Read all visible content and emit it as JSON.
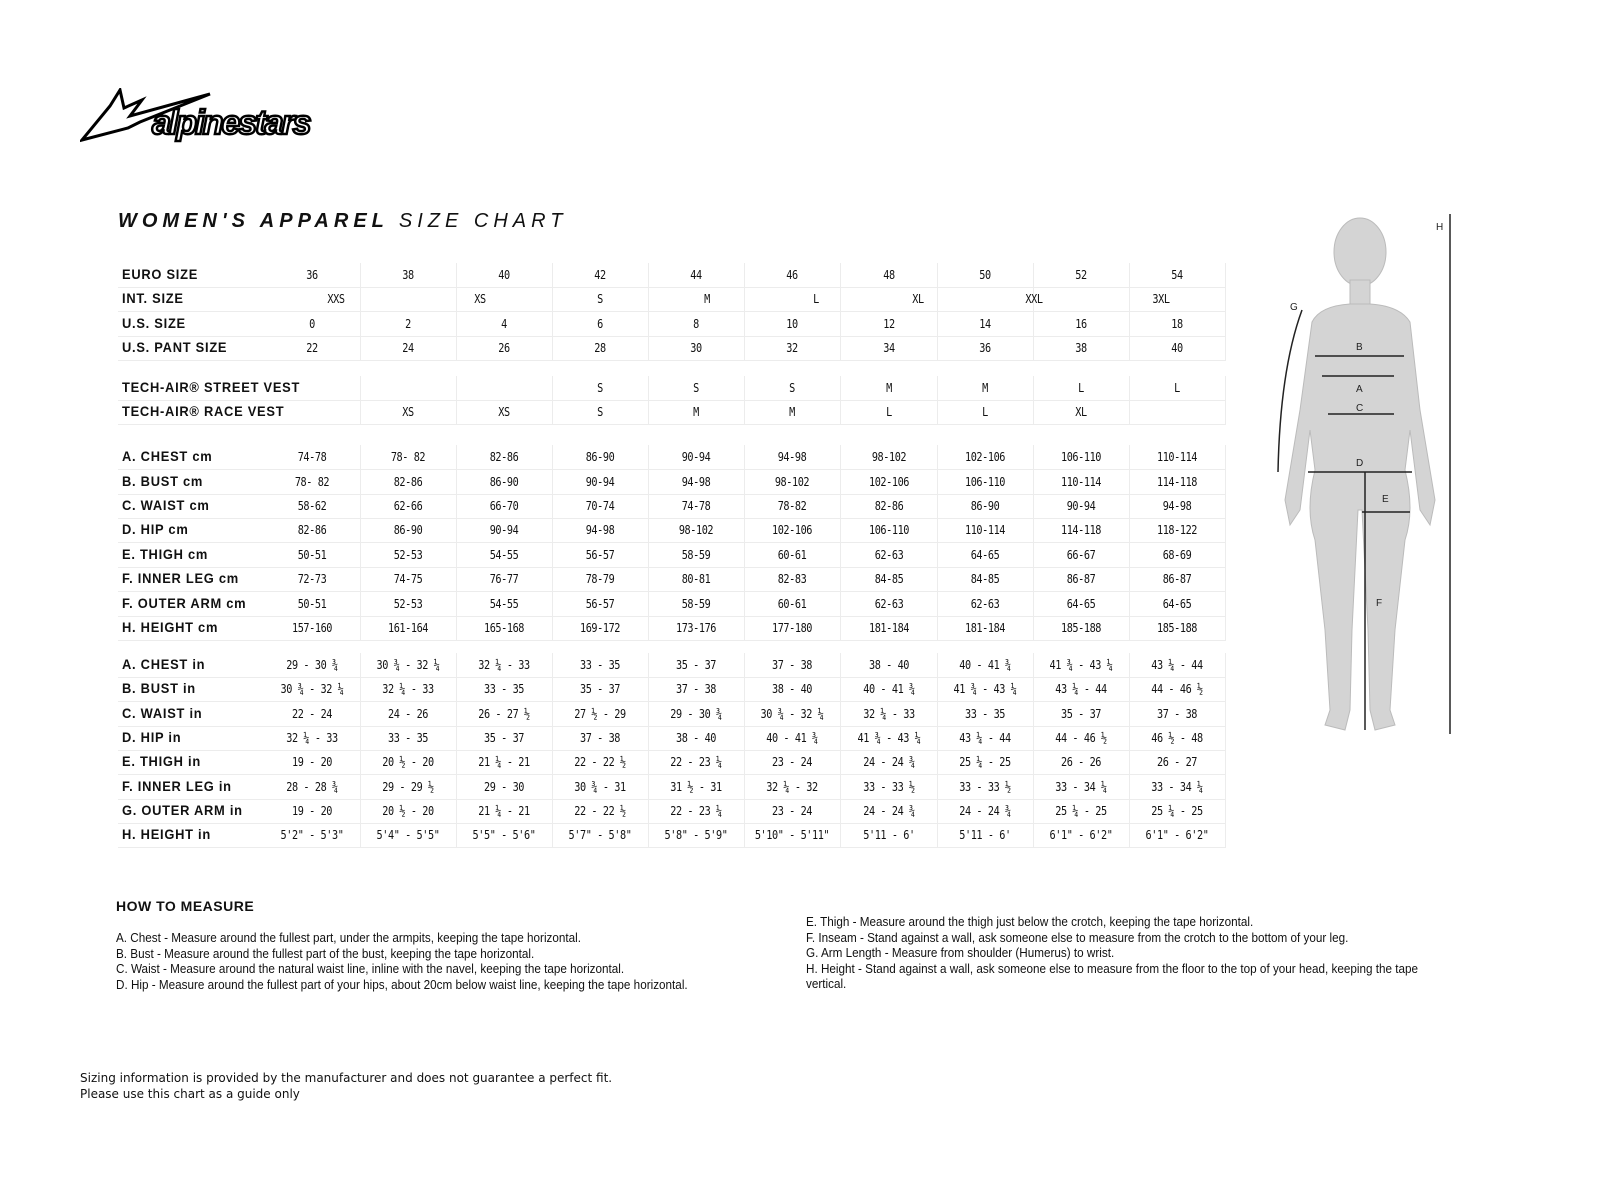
{
  "brand": {
    "logo_text": "alpinestars"
  },
  "title": {
    "bold": "WOMEN'S APPAREL",
    "light": "SIZE CHART"
  },
  "size_rows": [
    {
      "label": "EURO SIZE",
      "values": [
        "36",
        "38",
        "40",
        "42",
        "44",
        "46",
        "48",
        "50",
        "52",
        "54"
      ]
    },
    {
      "label": "INT. SIZE",
      "values": [
        "XXS",
        "XS",
        "S",
        "M",
        "L",
        "XL",
        "XXL",
        "3XL"
      ]
    },
    {
      "label": "U.S. SIZE",
      "values": [
        "0",
        "2",
        "4",
        "6",
        "8",
        "10",
        "12",
        "14",
        "16",
        "18"
      ]
    },
    {
      "label": "U.S. PANT SIZE",
      "values": [
        "22",
        "24",
        "26",
        "28",
        "30",
        "32",
        "34",
        "36",
        "38",
        "40"
      ]
    }
  ],
  "vest_rows": [
    {
      "label": "TECH-AIR® STREET VEST",
      "values": [
        "",
        "",
        "",
        "S",
        "S",
        "S",
        "M",
        "M",
        "L",
        "L"
      ]
    },
    {
      "label": "TECH-AIR® RACE VEST",
      "values": [
        "",
        "XS",
        "XS",
        "S",
        "M",
        "M",
        "L",
        "L",
        "XL",
        ""
      ]
    }
  ],
  "cm_rows": [
    {
      "label": "A. CHEST cm",
      "values": [
        "74-78",
        "78- 82",
        "82-86",
        "86-90",
        "90-94",
        "94-98",
        "98-102",
        "102-106",
        "106-110",
        "110-114"
      ]
    },
    {
      "label": "B. BUST cm",
      "values": [
        "78- 82",
        "82-86",
        "86-90",
        "90-94",
        "94-98",
        "98-102",
        "102-106",
        "106-110",
        "110-114",
        "114-118"
      ]
    },
    {
      "label": "C. WAIST cm",
      "values": [
        "58-62",
        "62-66",
        "66-70",
        "70-74",
        "74-78",
        "78-82",
        "82-86",
        "86-90",
        "90-94",
        "94-98"
      ]
    },
    {
      "label": "D. HIP cm",
      "values": [
        "82-86",
        "86-90",
        "90-94",
        "94-98",
        "98-102",
        "102-106",
        "106-110",
        "110-114",
        "114-118",
        "118-122"
      ]
    },
    {
      "label": "E. THIGH cm",
      "values": [
        "50-51",
        "52-53",
        "54-55",
        "56-57",
        "58-59",
        "60-61",
        "62-63",
        "64-65",
        "66-67",
        "68-69"
      ]
    },
    {
      "label": "F. INNER LEG cm",
      "values": [
        "72-73",
        "74-75",
        "76-77",
        "78-79",
        "80-81",
        "82-83",
        "84-85",
        "84-85",
        "86-87",
        "86-87"
      ]
    },
    {
      "label": "F. OUTER ARM cm",
      "values": [
        "50-51",
        "52-53",
        "54-55",
        "56-57",
        "58-59",
        "60-61",
        "62-63",
        "62-63",
        "64-65",
        "64-65"
      ]
    },
    {
      "label": "H. HEIGHT cm",
      "values": [
        "157-160",
        "161-164",
        "165-168",
        "169-172",
        "173-176",
        "177-180",
        "181-184",
        "181-184",
        "185-188",
        "185-188"
      ]
    }
  ],
  "in_rows": [
    {
      "label": "A. CHEST in",
      "values": [
        "29 - 30 ¾",
        "30 ¾ - 32 ¼",
        "32 ¼ - 33",
        "33 - 35",
        "35 - 37",
        "37 - 38",
        "38 - 40",
        "40 - 41 ¾",
        "41 ¾ - 43 ¼",
        "43 ¼ - 44"
      ]
    },
    {
      "label": "B. BUST in",
      "values": [
        "30 ¾ - 32 ¼",
        "32 ¼ - 33",
        "33 - 35",
        "35 - 37",
        "37 - 38",
        "38 - 40",
        "40 - 41 ¾",
        "41 ¾ - 43 ¼",
        "43 ¼ - 44",
        "44 - 46 ½"
      ]
    },
    {
      "label": "C. WAIST in",
      "values": [
        "22 - 24",
        "24 - 26",
        "26 - 27 ½",
        "27 ½ - 29",
        "29 - 30 ¾",
        "30 ¾ - 32 ¼",
        "32 ¼ - 33",
        "33 - 35",
        "35 - 37",
        "37 - 38"
      ]
    },
    {
      "label": "D. HIP in",
      "values": [
        "32 ¼ - 33",
        "33 - 35",
        "35 - 37",
        "37 - 38",
        "38 - 40",
        "40 - 41 ¾",
        "41 ¾ - 43 ¼",
        "43 ¼ - 44",
        "44 - 46 ½",
        "46 ½ - 48"
      ]
    },
    {
      "label": "E. THIGH in",
      "values": [
        "19 - 20",
        "20 ½ - 20",
        "21 ¼ - 21",
        "22 - 22 ½",
        "22 - 23 ¼",
        "23 - 24",
        "24 - 24 ¾",
        "25 ¼ - 25",
        "26 - 26",
        "26 - 27"
      ]
    },
    {
      "label": "F. INNER LEG in",
      "values": [
        "28 - 28 ¾",
        "29 - 29 ½",
        "29 - 30",
        "30 ¾ - 31",
        "31 ½ - 31",
        "32 ¼ - 32",
        "33 - 33 ½",
        "33 - 33 ½",
        "33 - 34 ¼",
        "33 - 34 ¼"
      ]
    },
    {
      "label": "G. OUTER ARM in",
      "values": [
        "19 - 20",
        "20 ½ - 20",
        "21 ¼ - 21",
        "22 - 22 ½",
        "22 - 23 ¼",
        "23 - 24",
        "24 - 24 ¾",
        "24 - 24 ¾",
        "25 ¼ - 25",
        "25 ¼ - 25"
      ]
    },
    {
      "label": "H. HEIGHT in",
      "values": [
        "5'2\" - 5'3\"",
        "5'4\" - 5'5\"",
        "5'5\" - 5'6\"",
        "5'7\" - 5'8\"",
        "5'8\" - 5'9\"",
        "5'10\" - 5'11\"",
        "5'11 - 6'",
        "5'11 - 6'",
        "6'1\" - 6'2\"",
        "6'1\" - 6'2\""
      ]
    }
  ],
  "figure": {
    "labels": [
      "A",
      "B",
      "C",
      "D",
      "E",
      "F",
      "G",
      "H"
    ],
    "fill": "#d4d4d4"
  },
  "how_to_measure": {
    "heading": "HOW TO MEASURE",
    "left": [
      "A. Chest - Measure around the fullest part, under the armpits, keeping the tape horizontal.",
      "B. Bust - Measure around the fullest part of the bust, keeping the tape horizontal.",
      "C. Waist - Measure around the natural waist line, inline with the navel, keeping the tape horizontal.",
      "D. Hip - Measure around the fullest part of your hips, about 20cm below waist line, keeping the tape horizontal."
    ],
    "right": [
      "E. Thigh - Measure around the thigh just below the crotch, keeping the tape horizontal.",
      "F. Inseam - Stand against a wall, ask someone else to measure from the crotch to the bottom of your leg.",
      "G. Arm Length - Measure from shoulder (Humerus) to wrist.",
      "H. Height - Stand against a wall, ask someone else to measure from the floor to the top of your head, keeping the tape",
      "vertical."
    ]
  },
  "disclaimer": [
    "Sizing information is provided by the manufacturer and does not guarantee a perfect fit.",
    "Please use this chart as a guide only"
  ]
}
